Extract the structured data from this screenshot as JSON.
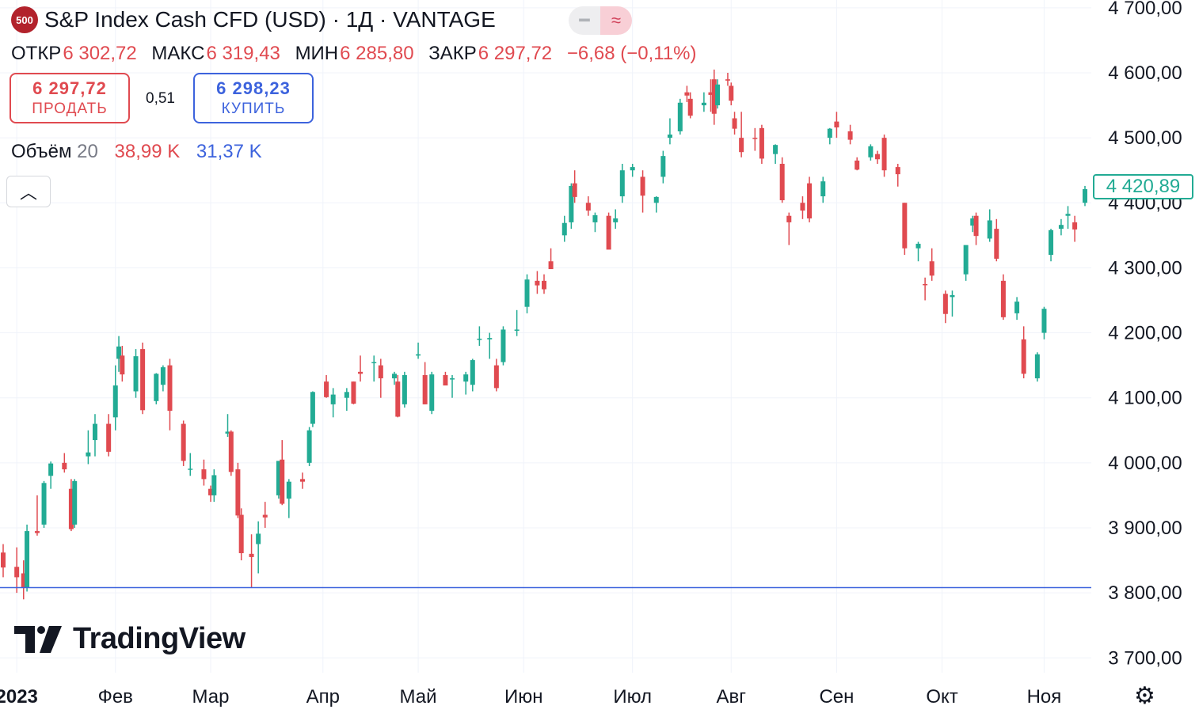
{
  "header": {
    "badge": "500",
    "title": "S&P Index Cash CFD (USD) · 1Д · VANTAGE",
    "flag_icons": [
      "minus-icon",
      "approx-icon"
    ]
  },
  "ohlc": {
    "open_label": "ОТКР",
    "open": "6 302,72",
    "high_label": "МАКС",
    "high": "6 319,43",
    "low_label": "МИН",
    "low": "6 285,80",
    "close_label": "ЗАКР",
    "close": "6 297,72",
    "change": "−6,68 (−0,11%)"
  },
  "trade": {
    "sell_price": "6 297,72",
    "sell_label": "ПРОДАТЬ",
    "spread": "0,51",
    "buy_price": "6 298,23",
    "buy_label": "КУПИТЬ"
  },
  "volume": {
    "label": "Объём",
    "length": "20",
    "sell": "38,99 K",
    "buy": "31,37 K"
  },
  "last_price": "4 420,89",
  "logo_text": "TradingView",
  "colors": {
    "up": "#22ab94",
    "down": "#e04a50",
    "hline": "#3d63dd",
    "grid": "#f0f3fa"
  },
  "chart_data": {
    "type": "candlestick",
    "y_ticks": [
      "4 700,00",
      "4 600,00",
      "4 500,00",
      "4 400,00",
      "4 300,00",
      "4 200,00",
      "4 100,00",
      "4 000,00",
      "3 900,00",
      "3 800,00",
      "3 700,00"
    ],
    "x_ticks": [
      "2023",
      "Фев",
      "Мар",
      "Апр",
      "Май",
      "Июн",
      "Июл",
      "Авг",
      "Сен",
      "Окт",
      "Ноя"
    ],
    "ylim": [
      3665,
      4712
    ],
    "horizontal_line": 3808,
    "x_range": [
      "2022-12-30",
      "2023-11-13"
    ],
    "series": [
      {
        "date": "2022-12-30",
        "open": 3862,
        "high": 3875,
        "low": 3824,
        "close": 3839
      },
      {
        "date": "2023-01-03",
        "open": 3840,
        "high": 3870,
        "low": 3800,
        "close": 3824
      },
      {
        "date": "2023-01-05",
        "open": 3830,
        "high": 3850,
        "low": 3790,
        "close": 3808
      },
      {
        "date": "2023-01-06",
        "open": 3808,
        "high": 3905,
        "low": 3802,
        "close": 3895
      },
      {
        "date": "2023-01-09",
        "open": 3895,
        "high": 3950,
        "low": 3888,
        "close": 3892
      },
      {
        "date": "2023-01-11",
        "open": 3905,
        "high": 3972,
        "low": 3900,
        "close": 3969
      },
      {
        "date": "2023-01-13",
        "open": 3980,
        "high": 4002,
        "low": 3960,
        "close": 3999
      },
      {
        "date": "2023-01-17",
        "open": 4000,
        "high": 4015,
        "low": 3985,
        "close": 3990
      },
      {
        "date": "2023-01-19",
        "open": 3960,
        "high": 3975,
        "low": 3895,
        "close": 3898
      },
      {
        "date": "2023-01-20",
        "open": 3905,
        "high": 3975,
        "low": 3900,
        "close": 3972
      },
      {
        "date": "2023-01-24",
        "open": 4010,
        "high": 4050,
        "low": 3998,
        "close": 4016
      },
      {
        "date": "2023-01-26",
        "open": 4035,
        "high": 4075,
        "low": 4010,
        "close": 4060
      },
      {
        "date": "2023-01-30",
        "open": 4060,
        "high": 4075,
        "low": 4010,
        "close": 4017
      },
      {
        "date": "2023-02-01",
        "open": 4070,
        "high": 4150,
        "low": 4050,
        "close": 4119
      },
      {
        "date": "2023-02-02",
        "open": 4160,
        "high": 4195,
        "low": 4140,
        "close": 4179
      },
      {
        "date": "2023-02-03",
        "open": 4165,
        "high": 4180,
        "low": 4125,
        "close": 4136
      },
      {
        "date": "2023-02-07",
        "open": 4110,
        "high": 4175,
        "low": 4100,
        "close": 4164
      },
      {
        "date": "2023-02-09",
        "open": 4175,
        "high": 4185,
        "low": 4075,
        "close": 4081
      },
      {
        "date": "2023-02-13",
        "open": 4095,
        "high": 4138,
        "low": 4090,
        "close": 4137
      },
      {
        "date": "2023-02-15",
        "open": 4120,
        "high": 4150,
        "low": 4110,
        "close": 4147
      },
      {
        "date": "2023-02-17",
        "open": 4150,
        "high": 4160,
        "low": 4050,
        "close": 4080
      },
      {
        "date": "2023-02-21",
        "open": 4060,
        "high": 4065,
        "low": 3995,
        "close": 4003
      },
      {
        "date": "2023-02-23",
        "open": 3990,
        "high": 4015,
        "low": 3980,
        "close": 3991
      },
      {
        "date": "2023-02-27",
        "open": 3990,
        "high": 4005,
        "low": 3965,
        "close": 3975
      },
      {
        "date": "2023-03-01",
        "open": 3960,
        "high": 3965,
        "low": 3940,
        "close": 3950
      },
      {
        "date": "2023-03-02",
        "open": 3950,
        "high": 3990,
        "low": 3940,
        "close": 3981
      },
      {
        "date": "2023-03-06",
        "open": 4045,
        "high": 4075,
        "low": 4040,
        "close": 4048
      },
      {
        "date": "2023-03-07",
        "open": 4048,
        "high": 4050,
        "low": 3980,
        "close": 3986
      },
      {
        "date": "2023-03-09",
        "open": 3990,
        "high": 4000,
        "low": 3915,
        "close": 3919
      },
      {
        "date": "2023-03-10",
        "open": 3920,
        "high": 3930,
        "low": 3850,
        "close": 3861
      },
      {
        "date": "2023-03-13",
        "open": 3860,
        "high": 3890,
        "low": 3808,
        "close": 3855
      },
      {
        "date": "2023-03-15",
        "open": 3875,
        "high": 3910,
        "low": 3830,
        "close": 3891
      },
      {
        "date": "2023-03-17",
        "open": 3920,
        "high": 3940,
        "low": 3900,
        "close": 3916
      },
      {
        "date": "2023-03-21",
        "open": 3950,
        "high": 4000,
        "low": 3945,
        "close": 4003
      },
      {
        "date": "2023-03-22",
        "open": 4005,
        "high": 4035,
        "low": 3935,
        "close": 3937
      },
      {
        "date": "2023-03-24",
        "open": 3945,
        "high": 3975,
        "low": 3915,
        "close": 3971
      },
      {
        "date": "2023-03-28",
        "open": 3975,
        "high": 3985,
        "low": 3960,
        "close": 3971
      },
      {
        "date": "2023-03-30",
        "open": 4000,
        "high": 4055,
        "low": 3995,
        "close": 4050
      },
      {
        "date": "2023-03-31",
        "open": 4060,
        "high": 4110,
        "low": 4055,
        "close": 4109
      },
      {
        "date": "2023-04-04",
        "open": 4125,
        "high": 4135,
        "low": 4100,
        "close": 4101
      },
      {
        "date": "2023-04-06",
        "open": 4090,
        "high": 4115,
        "low": 4070,
        "close": 4105
      },
      {
        "date": "2023-04-10",
        "open": 4100,
        "high": 4115,
        "low": 4080,
        "close": 4109
      },
      {
        "date": "2023-04-12",
        "open": 4125,
        "high": 4125,
        "low": 4090,
        "close": 4091
      },
      {
        "date": "2023-04-14",
        "open": 4140,
        "high": 4165,
        "low": 4125,
        "close": 4137
      },
      {
        "date": "2023-04-18",
        "open": 4155,
        "high": 4165,
        "low": 4125,
        "close": 4155
      },
      {
        "date": "2023-04-20",
        "open": 4150,
        "high": 4160,
        "low": 4100,
        "close": 4130
      },
      {
        "date": "2023-04-24",
        "open": 4130,
        "high": 4140,
        "low": 4120,
        "close": 4137
      },
      {
        "date": "2023-04-25",
        "open": 4125,
        "high": 4135,
        "low": 4070,
        "close": 4071
      },
      {
        "date": "2023-04-27",
        "open": 4090,
        "high": 4140,
        "low": 4085,
        "close": 4135
      },
      {
        "date": "2023-05-01",
        "open": 4165,
        "high": 4185,
        "low": 4160,
        "close": 4167
      },
      {
        "date": "2023-05-03",
        "open": 4135,
        "high": 4155,
        "low": 4090,
        "close": 4090
      },
      {
        "date": "2023-05-05",
        "open": 4080,
        "high": 4140,
        "low": 4075,
        "close": 4136
      },
      {
        "date": "2023-05-09",
        "open": 4135,
        "high": 4140,
        "low": 4120,
        "close": 4119
      },
      {
        "date": "2023-05-11",
        "open": 4130,
        "high": 4135,
        "low": 4100,
        "close": 4130
      },
      {
        "date": "2023-05-15",
        "open": 4125,
        "high": 4140,
        "low": 4105,
        "close": 4136
      },
      {
        "date": "2023-05-17",
        "open": 4120,
        "high": 4160,
        "low": 4110,
        "close": 4158
      },
      {
        "date": "2023-05-19",
        "open": 4190,
        "high": 4210,
        "low": 4180,
        "close": 4191
      },
      {
        "date": "2023-05-22",
        "open": 4190,
        "high": 4200,
        "low": 4160,
        "close": 4192
      },
      {
        "date": "2023-05-24",
        "open": 4150,
        "high": 4160,
        "low": 4110,
        "close": 4115
      },
      {
        "date": "2023-05-26",
        "open": 4155,
        "high": 4210,
        "low": 4150,
        "close": 4205
      },
      {
        "date": "2023-05-30",
        "open": 4205,
        "high": 4235,
        "low": 4195,
        "close": 4205
      },
      {
        "date": "2023-06-02",
        "open": 4240,
        "high": 4290,
        "low": 4230,
        "close": 4282
      },
      {
        "date": "2023-06-05",
        "open": 4280,
        "high": 4295,
        "low": 4260,
        "close": 4273
      },
      {
        "date": "2023-06-07",
        "open": 4280,
        "high": 4290,
        "low": 4260,
        "close": 4267
      },
      {
        "date": "2023-06-09",
        "open": 4310,
        "high": 4330,
        "low": 4300,
        "close": 4298
      },
      {
        "date": "2023-06-13",
        "open": 4350,
        "high": 4380,
        "low": 4340,
        "close": 4369
      },
      {
        "date": "2023-06-15",
        "open": 4370,
        "high": 4430,
        "low": 4360,
        "close": 4426
      },
      {
        "date": "2023-06-16",
        "open": 4430,
        "high": 4450,
        "low": 4400,
        "close": 4409
      },
      {
        "date": "2023-06-20",
        "open": 4400,
        "high": 4410,
        "low": 4380,
        "close": 4388
      },
      {
        "date": "2023-06-22",
        "open": 4370,
        "high": 4385,
        "low": 4355,
        "close": 4381
      },
      {
        "date": "2023-06-26",
        "open": 4380,
        "high": 4385,
        "low": 4330,
        "close": 4328
      },
      {
        "date": "2023-06-28",
        "open": 4370,
        "high": 4390,
        "low": 4360,
        "close": 4376
      },
      {
        "date": "2023-06-30",
        "open": 4410,
        "high": 4460,
        "low": 4400,
        "close": 4450
      },
      {
        "date": "2023-07-03",
        "open": 4450,
        "high": 4460,
        "low": 4440,
        "close": 4455
      },
      {
        "date": "2023-07-06",
        "open": 4440,
        "high": 4450,
        "low": 4385,
        "close": 4411
      },
      {
        "date": "2023-07-10",
        "open": 4400,
        "high": 4410,
        "low": 4385,
        "close": 4409
      },
      {
        "date": "2023-07-12",
        "open": 4440,
        "high": 4480,
        "low": 4430,
        "close": 4472
      },
      {
        "date": "2023-07-14",
        "open": 4500,
        "high": 4530,
        "low": 4490,
        "close": 4505
      },
      {
        "date": "2023-07-17",
        "open": 4510,
        "high": 4560,
        "low": 4505,
        "close": 4554
      },
      {
        "date": "2023-07-19",
        "open": 4570,
        "high": 4580,
        "low": 4555,
        "close": 4565
      },
      {
        "date": "2023-07-20",
        "open": 4560,
        "high": 4570,
        "low": 4530,
        "close": 4534
      },
      {
        "date": "2023-07-24",
        "open": 4550,
        "high": 4570,
        "low": 4540,
        "close": 4554
      },
      {
        "date": "2023-07-26",
        "open": 4570,
        "high": 4590,
        "low": 4540,
        "close": 4566
      },
      {
        "date": "2023-07-27",
        "open": 4590,
        "high": 4605,
        "low": 4520,
        "close": 4537
      },
      {
        "date": "2023-07-28",
        "open": 4550,
        "high": 4590,
        "low": 4545,
        "close": 4582
      },
      {
        "date": "2023-07-31",
        "open": 4590,
        "high": 4600,
        "low": 4580,
        "close": 4588
      },
      {
        "date": "2023-08-01",
        "open": 4580,
        "high": 4585,
        "low": 4550,
        "close": 4557
      },
      {
        "date": "2023-08-02",
        "open": 4530,
        "high": 4540,
        "low": 4505,
        "close": 4514
      },
      {
        "date": "2023-08-04",
        "open": 4500,
        "high": 4540,
        "low": 4470,
        "close": 4478
      },
      {
        "date": "2023-08-08",
        "open": 4500,
        "high": 4515,
        "low": 4480,
        "close": 4499
      },
      {
        "date": "2023-08-10",
        "open": 4515,
        "high": 4520,
        "low": 4460,
        "close": 4468
      },
      {
        "date": "2023-08-14",
        "open": 4475,
        "high": 4490,
        "low": 4460,
        "close": 4489
      },
      {
        "date": "2023-08-16",
        "open": 4460,
        "high": 4470,
        "low": 4400,
        "close": 4404
      },
      {
        "date": "2023-08-18",
        "open": 4380,
        "high": 4385,
        "low": 4335,
        "close": 4370
      },
      {
        "date": "2023-08-22",
        "open": 4400,
        "high": 4410,
        "low": 4375,
        "close": 4388
      },
      {
        "date": "2023-08-24",
        "open": 4430,
        "high": 4440,
        "low": 4370,
        "close": 4376
      },
      {
        "date": "2023-08-28",
        "open": 4410,
        "high": 4440,
        "low": 4400,
        "close": 4433
      },
      {
        "date": "2023-08-30",
        "open": 4500,
        "high": 4515,
        "low": 4490,
        "close": 4514
      },
      {
        "date": "2023-09-01",
        "open": 4525,
        "high": 4540,
        "low": 4500,
        "close": 4516
      },
      {
        "date": "2023-09-05",
        "open": 4510,
        "high": 4520,
        "low": 4490,
        "close": 4497
      },
      {
        "date": "2023-09-07",
        "open": 4465,
        "high": 4470,
        "low": 4450,
        "close": 4451
      },
      {
        "date": "2023-09-11",
        "open": 4470,
        "high": 4490,
        "low": 4465,
        "close": 4487
      },
      {
        "date": "2023-09-13",
        "open": 4475,
        "high": 4480,
        "low": 4460,
        "close": 4467
      },
      {
        "date": "2023-09-15",
        "open": 4500,
        "high": 4505,
        "low": 4440,
        "close": 4450
      },
      {
        "date": "2023-09-19",
        "open": 4455,
        "high": 4460,
        "low": 4425,
        "close": 4444
      },
      {
        "date": "2023-09-21",
        "open": 4400,
        "high": 4400,
        "low": 4320,
        "close": 4330
      },
      {
        "date": "2023-09-25",
        "open": 4330,
        "high": 4340,
        "low": 4310,
        "close": 4337
      },
      {
        "date": "2023-09-27",
        "open": 4275,
        "high": 4285,
        "low": 4250,
        "close": 4274
      },
      {
        "date": "2023-09-29",
        "open": 4310,
        "high": 4330,
        "low": 4280,
        "close": 4288
      },
      {
        "date": "2023-10-03",
        "open": 4260,
        "high": 4265,
        "low": 4215,
        "close": 4229
      },
      {
        "date": "2023-10-05",
        "open": 4255,
        "high": 4265,
        "low": 4225,
        "close": 4258
      },
      {
        "date": "2023-10-09",
        "open": 4290,
        "high": 4330,
        "low": 4280,
        "close": 4335
      },
      {
        "date": "2023-10-11",
        "open": 4365,
        "high": 4380,
        "low": 4355,
        "close": 4376
      },
      {
        "date": "2023-10-12",
        "open": 4380,
        "high": 4385,
        "low": 4335,
        "close": 4349
      },
      {
        "date": "2023-10-16",
        "open": 4345,
        "high": 4390,
        "low": 4340,
        "close": 4373
      },
      {
        "date": "2023-10-18",
        "open": 4360,
        "high": 4375,
        "low": 4310,
        "close": 4314
      },
      {
        "date": "2023-10-20",
        "open": 4280,
        "high": 4290,
        "low": 4220,
        "close": 4224
      },
      {
        "date": "2023-10-24",
        "open": 4230,
        "high": 4255,
        "low": 4220,
        "close": 4248
      },
      {
        "date": "2023-10-26",
        "open": 4190,
        "high": 4210,
        "low": 4130,
        "close": 4137
      },
      {
        "date": "2023-10-30",
        "open": 4130,
        "high": 4170,
        "low": 4125,
        "close": 4167
      },
      {
        "date": "2023-11-01",
        "open": 4200,
        "high": 4240,
        "low": 4190,
        "close": 4237
      },
      {
        "date": "2023-11-03",
        "open": 4320,
        "high": 4360,
        "low": 4310,
        "close": 4358
      },
      {
        "date": "2023-11-06",
        "open": 4360,
        "high": 4375,
        "low": 4350,
        "close": 4366
      },
      {
        "date": "2023-11-08",
        "open": 4380,
        "high": 4395,
        "low": 4360,
        "close": 4383
      },
      {
        "date": "2023-11-10",
        "open": 4370,
        "high": 4380,
        "low": 4340,
        "close": 4359
      },
      {
        "date": "2023-11-13",
        "open": 4400,
        "high": 4426,
        "low": 4395,
        "close": 4421
      }
    ]
  }
}
